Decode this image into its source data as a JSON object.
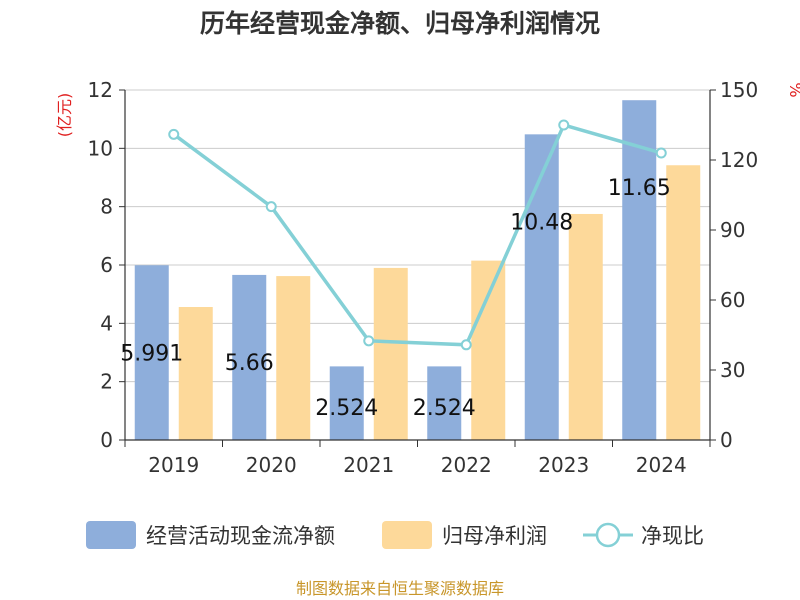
{
  "chart_data": {
    "type": "bar",
    "title": "历年经营现金净额、归母净利润情况",
    "categories": [
      "2019",
      "2020",
      "2021",
      "2022",
      "2023",
      "2024"
    ],
    "y_left": {
      "unit": "(亿元)",
      "ylim": [
        0,
        12
      ],
      "ticks": [
        "0",
        "2",
        "4",
        "6",
        "8",
        "10",
        "12"
      ]
    },
    "y_right": {
      "unit": "%",
      "ylim": [
        0,
        150
      ],
      "ticks": [
        "0",
        "30",
        "60",
        "90",
        "120",
        "150"
      ]
    },
    "series": [
      {
        "name": "经营活动现金流净额",
        "type": "bar",
        "axis": "left",
        "color": "#8eaedb",
        "values": [
          5.991,
          5.66,
          2.524,
          2.524,
          10.48,
          11.65
        ]
      },
      {
        "name": "归母净利润",
        "type": "bar",
        "axis": "left",
        "color": "#fdd99a",
        "values": [
          4.56,
          5.62,
          5.9,
          6.15,
          7.75,
          9.42
        ]
      },
      {
        "name": "净现比",
        "type": "line",
        "axis": "right",
        "color": "#84d0d6",
        "values": [
          131,
          100,
          42.5,
          40.8,
          135,
          123
        ]
      }
    ],
    "data_labels": [
      "5.991",
      "5.66",
      "2.524",
      "2.524",
      "10.48",
      "11.65"
    ],
    "grid": true,
    "legend": "bottom"
  },
  "source": "制图数据来自恒生聚源数据库"
}
